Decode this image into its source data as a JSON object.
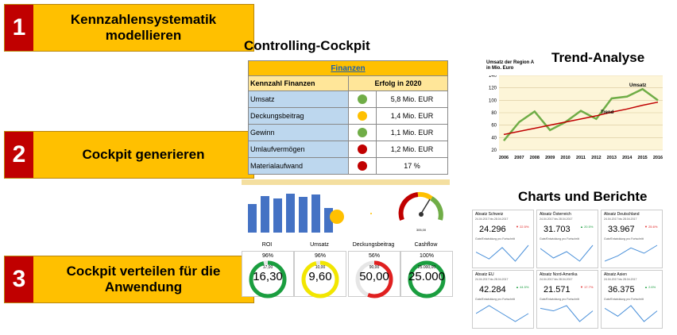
{
  "steps": [
    {
      "num": "1",
      "text": "Kennzahlensystematik\nmodellieren"
    },
    {
      "num": "2",
      "text": "Cockpit generieren"
    },
    {
      "num": "3",
      "text": "Cockpit verteilen für die\nAnwendung"
    }
  ],
  "headings": {
    "cockpit": "Controlling-Cockpit",
    "trend": "Trend-Analyse",
    "charts": "Charts und Berichte"
  },
  "finance_table": {
    "title": "Finanzen",
    "col1": "Kennzahl Finanzen",
    "col2": "Erfolg in 2020",
    "rows": [
      {
        "label": "Umsatz",
        "status": "#70ad47",
        "value": "5,8 Mio. EUR"
      },
      {
        "label": "Deckungsbeitrag",
        "status": "#ffc000",
        "value": "1,4 Mio. EUR"
      },
      {
        "label": "Gewinn",
        "status": "#70ad47",
        "value": "1,1 Mio. EUR"
      },
      {
        "label": "Umlaufvermögen",
        "status": "#c00000",
        "value": "1,2 Mio. EUR"
      },
      {
        "label": "Materialaufwand",
        "status": "#c00000",
        "value": "17 %"
      }
    ]
  },
  "dashboard": {
    "bars": [
      0.72,
      0.92,
      0.86,
      0.98,
      0.9,
      0.96,
      0.62
    ],
    "gauge_label": "305,00"
  },
  "kpis": [
    {
      "name": "ROI",
      "pct": "96%",
      "small": "17,00",
      "big": "16,30",
      "color": "#1a9e3f",
      "fill": 0.96
    },
    {
      "name": "Umsatz",
      "pct": "96%",
      "small": "10,00",
      "big": "9,60",
      "color": "#f2e600",
      "fill": 0.96
    },
    {
      "name": "Deckungsbeitrag",
      "pct": "56%",
      "small": "90,00",
      "big": "50,00",
      "color": "#e02020",
      "fill": 0.56
    },
    {
      "name": "Cashflow",
      "pct": "100%",
      "small": "25.000,00",
      "big": "25.000",
      "color": "#1a9e3f",
      "fill": 1.0
    }
  ],
  "trend": {
    "label_line1": "Umsatz der Region A",
    "label_line2": "in Mio. Euro",
    "series_umsatz": "Umsatz",
    "series_trend": "Trend",
    "chart_data": {
      "type": "line",
      "categories": [
        "2006",
        "2007",
        "2008",
        "2009",
        "2010",
        "2011",
        "2012",
        "2013",
        "2014",
        "2015",
        "2016"
      ],
      "series": [
        {
          "name": "Umsatz",
          "values": [
            35,
            65,
            82,
            52,
            65,
            83,
            70,
            103,
            106,
            118,
            100
          ]
        },
        {
          "name": "Trend",
          "values": [
            45,
            50,
            55,
            60,
            65,
            70,
            75,
            81,
            86,
            92,
            97
          ]
        }
      ],
      "ylim": [
        20,
        140
      ],
      "yticks": [
        "20",
        "40",
        "60",
        "80",
        "100",
        "120",
        "140"
      ]
    }
  },
  "reports": [
    {
      "title": "Absatz Schweiz",
      "date": "24.04.2017   bis   28.04.2017",
      "value": "24.296",
      "change": "▼ 22.5%",
      "up": false,
      "note": "Gute/Entwicklung pro Fortschritt",
      "line": [
        6,
        3,
        8,
        2,
        9
      ]
    },
    {
      "title": "Absatz Österreich",
      "date": "24.04.2017   bis   28.04.2017",
      "value": "31.703",
      "change": "▲ 20.5%",
      "up": true,
      "note": "Gute/Entwicklung pro Fortschritt",
      "line": [
        7,
        4,
        6,
        3,
        8
      ]
    },
    {
      "title": "Absatz Deutschland",
      "date": "24.04.2017   bis   28.04.2017",
      "value": "33.967",
      "change": "▼ 25.6%",
      "up": false,
      "note": "Gute/Entwicklung pro Fortschritt",
      "line": [
        3,
        5,
        8,
        6,
        9
      ]
    },
    {
      "title": "Absatz EU",
      "date": "24.04.2017   bis   28.04.2017",
      "value": "42.284",
      "change": "▲ 44.5%",
      "up": true,
      "note": "Gute/Entwicklung pro Fortschritt",
      "line": [
        6,
        7,
        6,
        5,
        6
      ]
    },
    {
      "title": "Absatz Nord-Amerika",
      "date": "24.04.2017   bis   28.04.2017",
      "value": "21.571",
      "change": "▼ 17.7%",
      "up": false,
      "note": "Gute/Entwicklung pro Fortschritt",
      "line": [
        8,
        7,
        9,
        3,
        7
      ]
    },
    {
      "title": "Absatz Asien",
      "date": "24.04.2017   bis   28.04.2017",
      "value": "36.375",
      "change": "▲ 2.6%",
      "up": true,
      "note": "Gute/Entwicklung pro Fortschritt",
      "line": [
        7,
        4,
        8,
        2,
        6
      ]
    }
  ]
}
